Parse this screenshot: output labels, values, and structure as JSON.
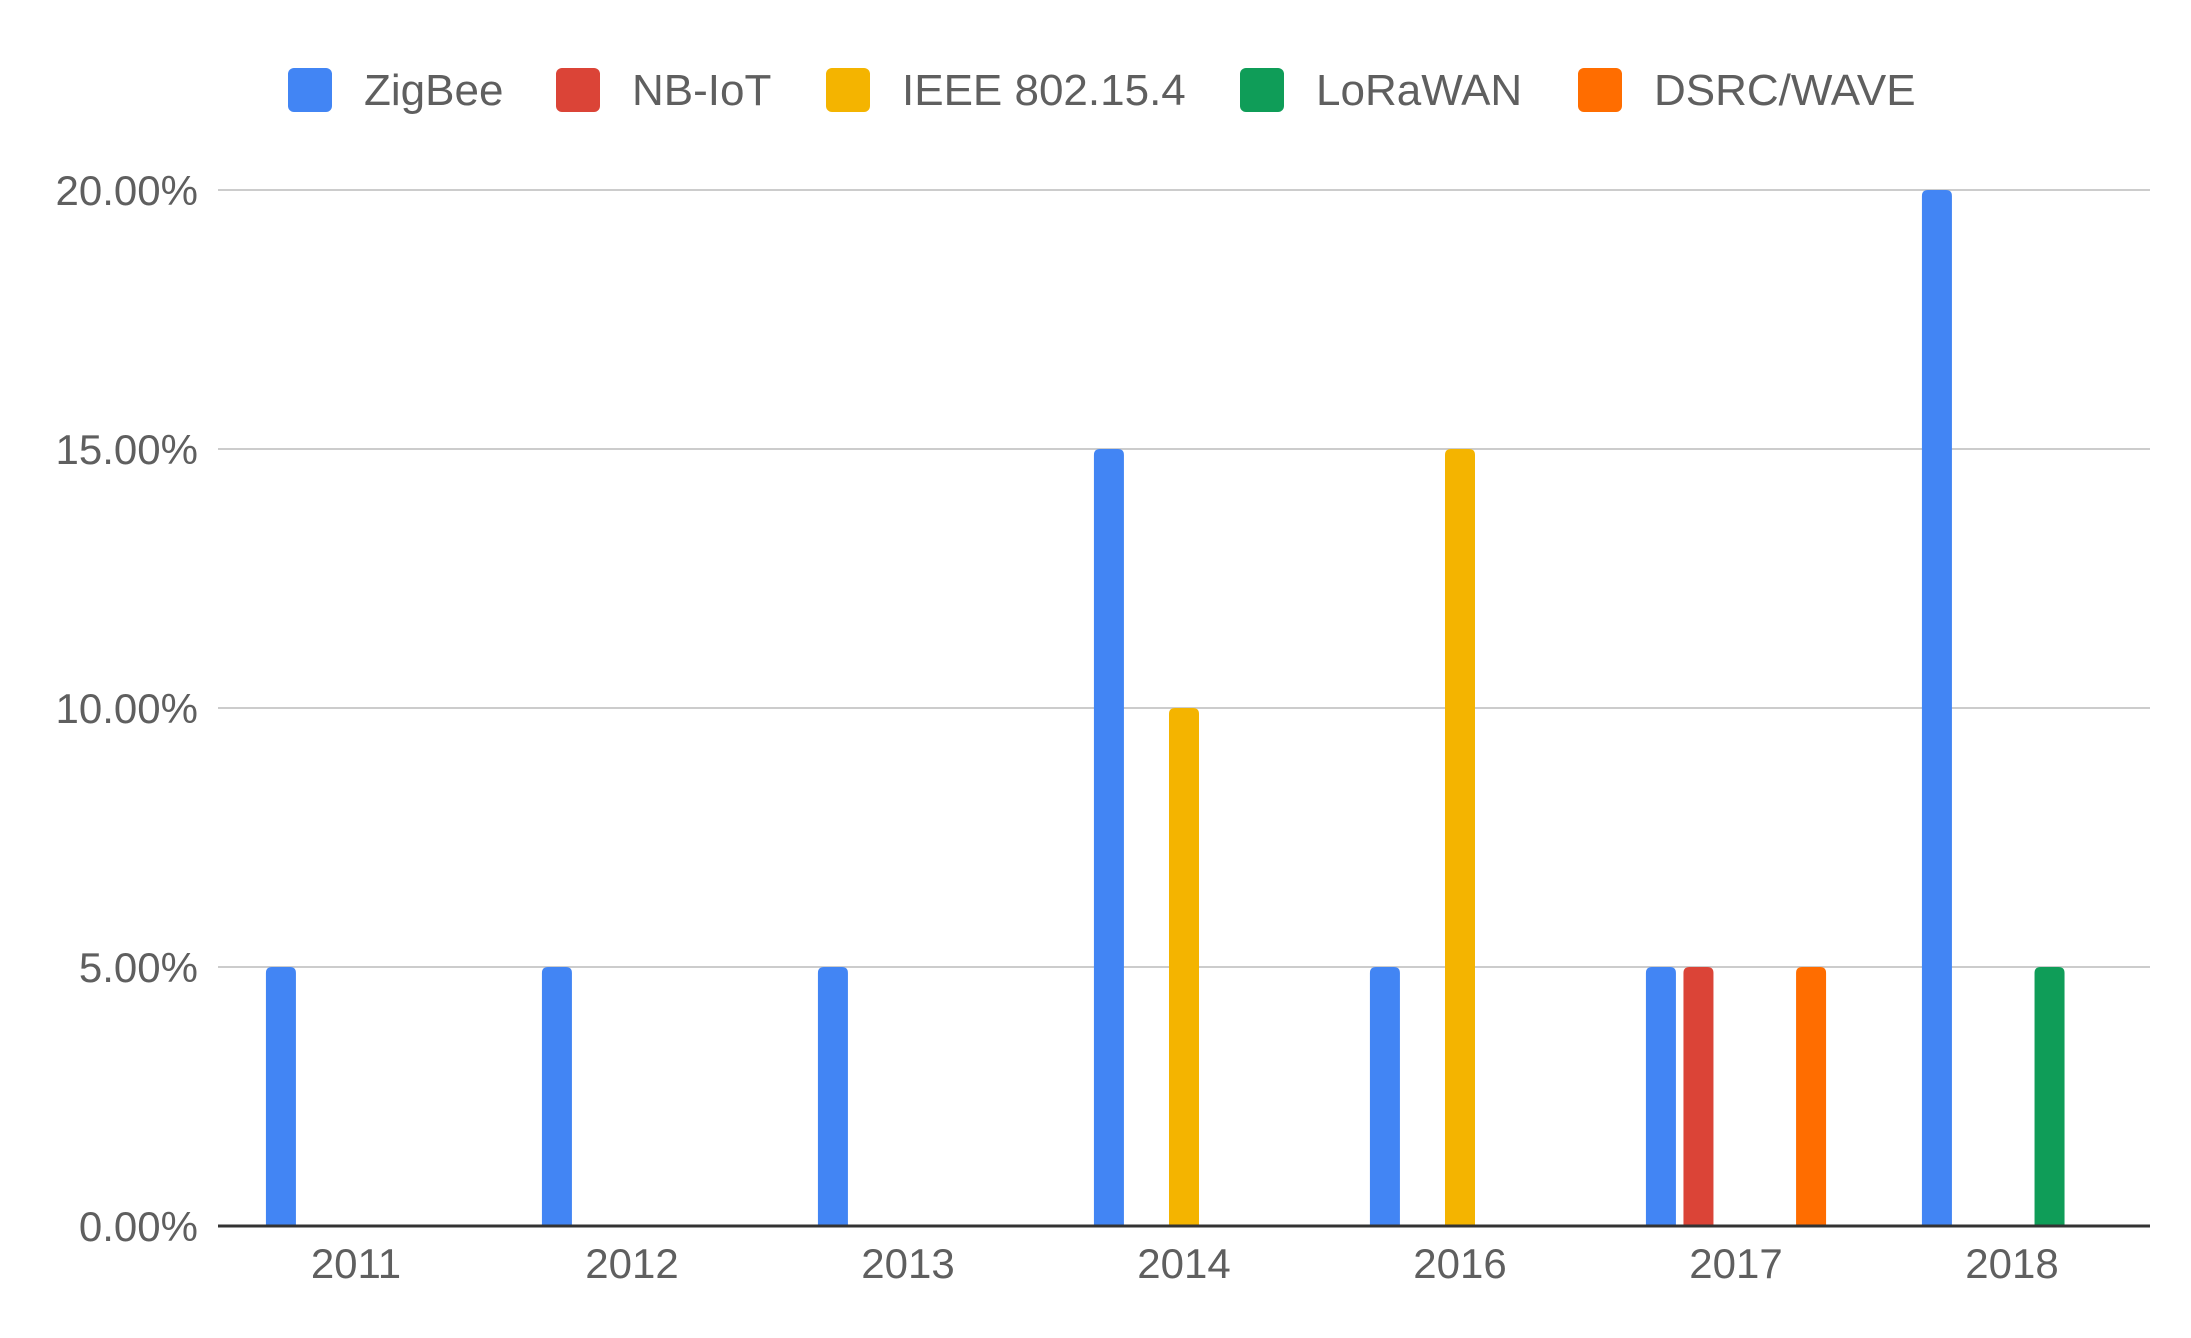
{
  "chart_data": {
    "type": "bar",
    "title": "",
    "xlabel": "",
    "ylabel": "",
    "categories": [
      "2011",
      "2012",
      "2013",
      "2014",
      "2016",
      "2017",
      "2018"
    ],
    "series": [
      {
        "name": "ZigBee",
        "color": "#4285f4",
        "values": [
          5,
          5,
          5,
          15,
          5,
          5,
          20
        ]
      },
      {
        "name": "NB-IoT",
        "color": "#db4437",
        "values": [
          0,
          0,
          0,
          0,
          0,
          5,
          0
        ]
      },
      {
        "name": "IEEE 802.15.4",
        "color": "#f4b400",
        "values": [
          0,
          0,
          0,
          10,
          15,
          0,
          0
        ]
      },
      {
        "name": "LoRaWAN",
        "color": "#0f9d58",
        "values": [
          0,
          0,
          0,
          0,
          0,
          0,
          5
        ]
      },
      {
        "name": "DSRC/WAVE",
        "color": "#ff6d00",
        "values": [
          0,
          0,
          0,
          0,
          0,
          5,
          0
        ]
      }
    ],
    "ylim": [
      0,
      20
    ],
    "yticks": [
      "0.00%",
      "5.00%",
      "10.00%",
      "15.00%",
      "20.00%"
    ],
    "ytick_values": [
      0,
      5,
      10,
      15,
      20
    ],
    "grid": true,
    "legend_position": "top"
  }
}
